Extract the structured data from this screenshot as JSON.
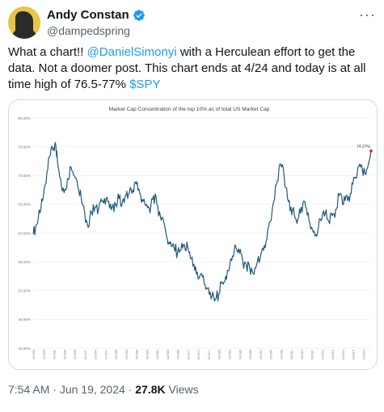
{
  "author": {
    "name": "Andy Constan",
    "handle": "@dampedspring"
  },
  "tweet": {
    "text_before_link": "What a chart!!  ",
    "mention": "@DanielSimonyi",
    "text_after_mention": " with a Herculean effort to get the  data.  Not a doomer post.  This chart ends at 4/24 and today is at all time high of 76.5-77% ",
    "cashtag": "$SPY"
  },
  "footer": {
    "time": "7:54 AM",
    "separator": " · ",
    "date": "Jun 19, 2024",
    "views_count": "27.8K",
    "views_label": " Views"
  },
  "colors": {
    "line": "#1f5a7a",
    "verified": "#1d9bf0",
    "link": "#1d9bf0",
    "end_marker": "#d62728"
  },
  "chart_data": {
    "type": "line",
    "title": "Market Cap Concentration of the top 10% as of total US Market Cap",
    "ylim": [
      40,
      80
    ],
    "yticks": [
      "40.00%",
      "45.00%",
      "50.00%",
      "55.00%",
      "60.00%",
      "65.00%",
      "70.00%",
      "75.00%",
      "80.00%"
    ],
    "ytick_values": [
      40,
      45,
      50,
      55,
      60,
      65,
      70,
      75,
      80
    ],
    "xlim": [
      1926,
      2024.3
    ],
    "xticks": [
      "6/1926",
      "6/1929",
      "6/1932",
      "6/1935",
      "6/1938",
      "6/1941",
      "6/1944",
      "6/1947",
      "6/1950",
      "6/1953",
      "6/1956",
      "6/1959",
      "6/1962",
      "6/1965",
      "6/1968",
      "6/1971",
      "6/1974",
      "6/1977",
      "6/1980",
      "6/1983",
      "6/1986",
      "6/1989",
      "6/1992",
      "6/1995",
      "6/1998",
      "6/2001",
      "6/2004",
      "6/2007",
      "6/2010",
      "6/2013",
      "6/2016",
      "6/2019",
      "6/2022"
    ],
    "xtick_values": [
      1926.5,
      1929.5,
      1932.5,
      1935.5,
      1938.5,
      1941.5,
      1944.5,
      1947.5,
      1950.5,
      1953.5,
      1956.5,
      1959.5,
      1962.5,
      1965.5,
      1968.5,
      1971.5,
      1974.5,
      1977.5,
      1980.5,
      1983.5,
      1986.5,
      1989.5,
      1992.5,
      1995.5,
      1998.5,
      2001.5,
      2004.5,
      2007.5,
      2010.5,
      2013.5,
      2016.5,
      2019.5,
      2022.5
    ],
    "series": [
      {
        "x": [
          1926,
          1927,
          1928,
          1929,
          1930,
          1931,
          1932,
          1932.6,
          1933,
          1934,
          1935,
          1936,
          1937,
          1938,
          1939,
          1940,
          1941,
          1942,
          1943,
          1944,
          1945,
          1946,
          1947,
          1948,
          1949,
          1950,
          1951,
          1952,
          1953,
          1954,
          1955,
          1956,
          1957,
          1958,
          1959,
          1960,
          1961,
          1962,
          1963,
          1964,
          1965,
          1966,
          1967,
          1968,
          1969,
          1970,
          1971,
          1972,
          1973,
          1974,
          1975,
          1976,
          1977,
          1978,
          1979,
          1980,
          1981,
          1982,
          1983,
          1984,
          1985,
          1986,
          1987,
          1988,
          1989,
          1990,
          1991,
          1992,
          1993,
          1994,
          1995,
          1996,
          1997,
          1998,
          1999,
          2000,
          2001,
          2002,
          2003,
          2004,
          2005,
          2006,
          2007,
          2008,
          2009,
          2010,
          2011,
          2012,
          2013,
          2014,
          2015,
          2016,
          2017,
          2018,
          2019,
          2020,
          2021,
          2022,
          2023,
          2024.3
        ],
        "y": [
          59.8,
          61.5,
          63.5,
          66.5,
          70.5,
          73.5,
          74.8,
          75.2,
          73.0,
          69.5,
          67.0,
          69.5,
          71.5,
          70.0,
          68.0,
          66.0,
          63.5,
          61.0,
          63.5,
          64.5,
          64.0,
          65.5,
          65.0,
          65.5,
          64.5,
          65.0,
          66.0,
          65.5,
          66.5,
          67.0,
          67.5,
          68.5,
          67.0,
          65.5,
          65.0,
          63.5,
          66.5,
          65.0,
          63.0,
          62.0,
          59.0,
          58.5,
          57.5,
          56.5,
          57.0,
          58.0,
          57.5,
          55.5,
          53.5,
          52.0,
          53.0,
          51.0,
          50.5,
          49.0,
          48.5,
          49.5,
          51.5,
          52.5,
          53.5,
          56.0,
          57.5,
          56.5,
          55.0,
          54.5,
          54.0,
          53.0,
          54.5,
          55.5,
          57.0,
          59.0,
          62.0,
          65.5,
          69.0,
          72.0,
          70.0,
          66.0,
          64.5,
          63.0,
          62.5,
          64.5,
          65.5,
          63.5,
          61.0,
          59.5,
          61.0,
          62.5,
          63.5,
          62.0,
          63.0,
          64.0,
          66.5,
          65.0,
          66.5,
          65.5,
          68.5,
          69.5,
          72.0,
          70.0,
          71.0,
          74.27
        ]
      }
    ],
    "end_label": "74.27%",
    "grid": true,
    "legend": "none"
  }
}
